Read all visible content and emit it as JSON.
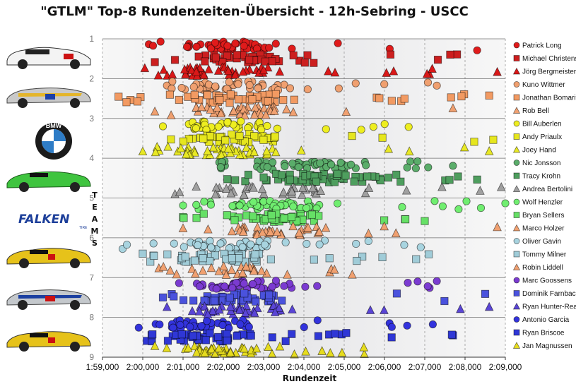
{
  "title": "\"GTLM\" Top-8 Rundenzeiten-Übersicht - 12h-Sebring - USCC",
  "side_label": "TEAMS",
  "logos": {
    "bmw": "BMW",
    "falken": "FALKEN",
    "falken_sub": "TIRE"
  },
  "chart_data": {
    "type": "scatter",
    "title": "\"GTLM\" Top-8 Rundenzeiten-Übersicht - 12h-Sebring - USCC",
    "xlabel": "Rundenzeit",
    "ylabel": "",
    "x_ticks": [
      "1:59,000",
      "2:00,000",
      "2:01,000",
      "2:02,000",
      "2:03,000",
      "2:04,000",
      "2:05,000",
      "2:06,000",
      "2:07,000",
      "2:08,000",
      "2:09,000"
    ],
    "x_range_seconds": [
      119,
      129
    ],
    "y_ticks": [
      "1",
      "2",
      "3",
      "4",
      "5",
      "6",
      "7",
      "8",
      "9"
    ],
    "y_range": [
      1,
      9
    ],
    "grid": true,
    "legend_position": "right",
    "series": [
      {
        "name": "Patrick Long",
        "team": 1,
        "marker": "circle",
        "color": "#e01b1b",
        "min": 120.15,
        "q1": 121.1,
        "q3": 123.2,
        "max": 128.3,
        "count": 52,
        "lane": 0
      },
      {
        "name": "Michael Christensen",
        "team": 1,
        "marker": "square",
        "color": "#cc1f1f",
        "min": 120.3,
        "q1": 121.3,
        "q3": 123.4,
        "max": 127.8,
        "count": 44,
        "lane": 1
      },
      {
        "name": "Jörg Bergmeister",
        "team": 1,
        "marker": "triangle",
        "color": "#d91818",
        "min": 120.05,
        "q1": 121.0,
        "q3": 123.3,
        "max": 128.8,
        "count": 48,
        "lane": 2
      },
      {
        "name": "Kuno Wittmer",
        "team": 2,
        "marker": "circle",
        "color": "#f0a070",
        "min": 120.6,
        "q1": 121.4,
        "q3": 123.6,
        "max": 127.3,
        "count": 44,
        "lane": 0
      },
      {
        "name": "Jonathan Bomarito",
        "team": 2,
        "marker": "square",
        "color": "#f29a62",
        "min": 119.4,
        "q1": 121.1,
        "q3": 123.3,
        "max": 128.6,
        "count": 52,
        "lane": 1
      },
      {
        "name": "Rob Bell",
        "team": 2,
        "marker": "triangle",
        "color": "#f0a070",
        "min": 120.3,
        "q1": 121.3,
        "q3": 123.5,
        "max": 127.7,
        "count": 40,
        "lane": 2
      },
      {
        "name": "Bill Auberlen",
        "team": 3,
        "marker": "circle",
        "color": "#eeee20",
        "min": 120.5,
        "q1": 121.2,
        "q3": 123.0,
        "max": 126.6,
        "count": 42,
        "lane": 0
      },
      {
        "name": "Andy Priaulx",
        "team": 3,
        "marker": "square",
        "color": "#e6e61e",
        "min": 120.7,
        "q1": 121.5,
        "q3": 123.4,
        "max": 128.7,
        "count": 44,
        "lane": 1
      },
      {
        "name": "Joey Hand",
        "team": 3,
        "marker": "triangle",
        "color": "#e8e824",
        "min": 120.0,
        "q1": 121.0,
        "q3": 123.3,
        "max": 128.6,
        "count": 48,
        "lane": 2
      },
      {
        "name": "Nic Jonsson",
        "team": 4,
        "marker": "circle",
        "color": "#5aad6a",
        "min": 121.9,
        "q1": 122.8,
        "q3": 125.0,
        "max": 127.7,
        "count": 56,
        "lane": 0
      },
      {
        "name": "Tracy Krohn",
        "team": 4,
        "marker": "square",
        "color": "#4e9e5e",
        "min": 122.1,
        "q1": 123.3,
        "q3": 125.9,
        "max": 128.3,
        "count": 60,
        "lane": 1
      },
      {
        "name": "Andrea Bertolini",
        "team": 4,
        "marker": "triangle",
        "color": "#a0a0a0",
        "min": 120.8,
        "q1": 121.8,
        "q3": 124.4,
        "max": 128.9,
        "count": 40,
        "lane": 2
      },
      {
        "name": "Wolf Henzler",
        "team": 5,
        "marker": "circle",
        "color": "#70ee70",
        "min": 121.0,
        "q1": 122.2,
        "q3": 124.5,
        "max": 129.0,
        "count": 56,
        "lane": 0
      },
      {
        "name": "Bryan Sellers",
        "team": 5,
        "marker": "square",
        "color": "#66e066",
        "min": 121.0,
        "q1": 122.0,
        "q3": 124.2,
        "max": 127.0,
        "count": 50,
        "lane": 1
      },
      {
        "name": "Marco Holzer",
        "team": 5,
        "marker": "triangle",
        "color": "#f0a070",
        "min": 121.0,
        "q1": 122.3,
        "q3": 124.4,
        "max": 128.8,
        "count": 40,
        "lane": 2
      },
      {
        "name": "Oliver Gavin",
        "team": 6,
        "marker": "circle",
        "color": "#a8d4e0",
        "min": 119.5,
        "q1": 120.9,
        "q3": 122.9,
        "max": 126.9,
        "count": 46,
        "lane": 0
      },
      {
        "name": "Tommy Milner",
        "team": 6,
        "marker": "square",
        "color": "#a0ccd8",
        "min": 120.0,
        "q1": 120.8,
        "q3": 122.8,
        "max": 127.1,
        "count": 50,
        "lane": 1
      },
      {
        "name": "Robin Liddell",
        "team": 6,
        "marker": "triangle",
        "color": "#f0a070",
        "min": 120.4,
        "q1": 121.3,
        "q3": 122.8,
        "max": 125.2,
        "count": 30,
        "lane": 2
      },
      {
        "name": "Marc Goossens",
        "team": 7,
        "marker": "circle",
        "color": "#7b3bd1",
        "min": 120.9,
        "q1": 121.8,
        "q3": 123.6,
        "max": 127.3,
        "count": 50,
        "lane": 0
      },
      {
        "name": "Dominik Farnbacher",
        "team": 7,
        "marker": "square",
        "color": "#4a52dd",
        "min": 120.5,
        "q1": 121.3,
        "q3": 123.2,
        "max": 128.5,
        "count": 50,
        "lane": 1
      },
      {
        "name": "Ryan Hunter-Reay",
        "team": 7,
        "marker": "triangle",
        "color": "#5a45d6",
        "min": 120.6,
        "q1": 121.4,
        "q3": 123.4,
        "max": 128.6,
        "count": 40,
        "lane": 2
      },
      {
        "name": "Antonio Garcia",
        "team": 8,
        "marker": "circle",
        "color": "#3333dd",
        "min": 119.9,
        "q1": 120.7,
        "q3": 122.6,
        "max": 127.2,
        "count": 50,
        "lane": 0
      },
      {
        "name": "Ryan Briscoe",
        "team": 8,
        "marker": "square",
        "color": "#2f37d6",
        "min": 120.1,
        "q1": 120.9,
        "q3": 122.9,
        "max": 127.7,
        "count": 50,
        "lane": 1
      },
      {
        "name": "Jan Magnussen",
        "team": 8,
        "marker": "triangle",
        "color": "#e6dc1e",
        "min": 120.3,
        "q1": 120.9,
        "q3": 122.8,
        "max": 125.5,
        "count": 46,
        "lane": 2
      }
    ]
  }
}
